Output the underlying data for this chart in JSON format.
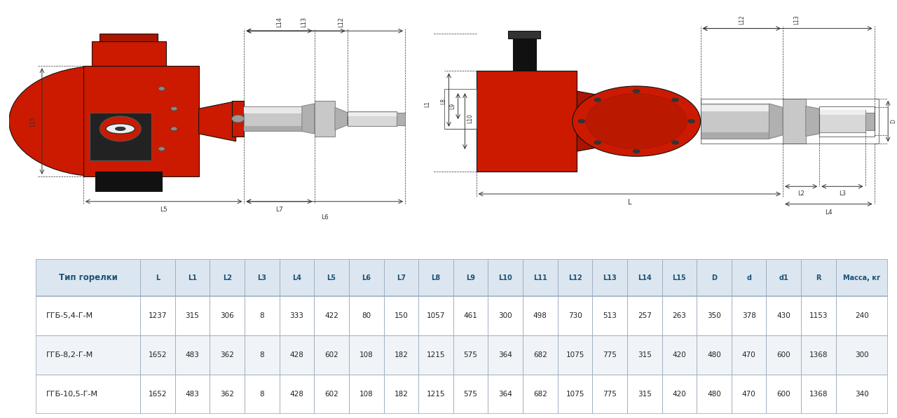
{
  "table_header": [
    "Тип горелки",
    "L",
    "L1",
    "L2",
    "L3",
    "L4",
    "L5",
    "L6",
    "L7",
    "L8",
    "L9",
    "L10",
    "L11",
    "L12",
    "L13",
    "L14",
    "L15",
    "D",
    "d",
    "d1",
    "R",
    "Масса, кг"
  ],
  "table_rows": [
    [
      "ГГБ-5,4-Г-М",
      "1237",
      "315",
      "306",
      "8",
      "333",
      "422",
      "80",
      "150",
      "1057",
      "461",
      "300",
      "498",
      "730",
      "513",
      "257",
      "263",
      "350",
      "378",
      "430",
      "1153",
      "240"
    ],
    [
      "ГГБ-8,2-Г-М",
      "1652",
      "483",
      "362",
      "8",
      "428",
      "602",
      "108",
      "182",
      "1215",
      "575",
      "364",
      "682",
      "1075",
      "775",
      "315",
      "420",
      "480",
      "470",
      "600",
      "1368",
      "300"
    ],
    [
      "ГГБ-10,5-Г-М",
      "1652",
      "483",
      "362",
      "8",
      "428",
      "602",
      "108",
      "182",
      "1215",
      "575",
      "364",
      "682",
      "1075",
      "775",
      "315",
      "420",
      "480",
      "470",
      "600",
      "1368",
      "340"
    ]
  ],
  "header_color": "#dce6f1",
  "row_color_odd": "#ffffff",
  "row_color_even": "#f0f4f8",
  "border_color": "#a0aec0",
  "header_text_color": "#1a5276",
  "cell_text_color": "#222222",
  "bg_color": "#ffffff"
}
